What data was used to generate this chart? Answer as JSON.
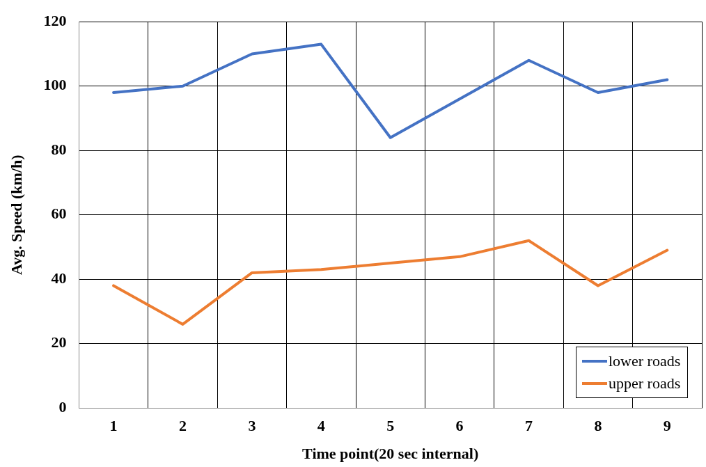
{
  "chart_data": {
    "type": "line",
    "xlabel": "Time point(20 sec internal)",
    "ylabel": "Avg. Speed (km/h)",
    "categories": [
      "1",
      "2",
      "3",
      "4",
      "5",
      "6",
      "7",
      "8",
      "9"
    ],
    "series": [
      {
        "name": "lower roads",
        "color": "#4472c4",
        "values": [
          98,
          100,
          110,
          113,
          84,
          96,
          108,
          98,
          102
        ]
      },
      {
        "name": "upper roads",
        "color": "#ed7d31",
        "values": [
          38,
          26,
          42,
          43,
          45,
          47,
          52,
          38,
          49
        ]
      }
    ],
    "ylim": [
      0,
      120
    ],
    "yticks": [
      0,
      20,
      40,
      60,
      80,
      100,
      120
    ],
    "grid": true,
    "legend": "bottom right",
    "marker": "none",
    "line_style": "solid"
  }
}
